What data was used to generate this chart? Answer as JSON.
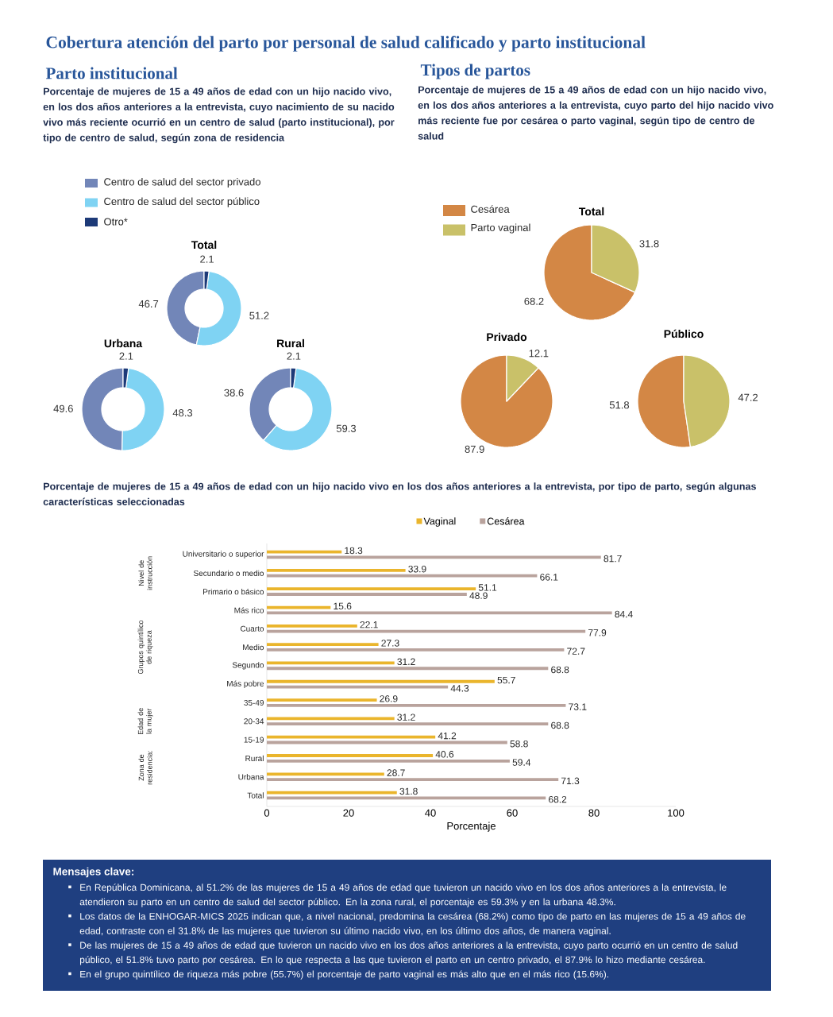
{
  "chart_data": [
    {
      "type": "other",
      "title": "Cobertura atención del parto por personal de salud calificado y parto institucional"
    },
    {
      "type": "other",
      "title": "Parto institucional",
      "subtitle": "Porcentaje de mujeres de 15 a 49 años de edad con un hijo nacido vivo, en los dos años anteriores a la entrevista, cuyo nacimiento de su nacido vivo más reciente ocurrió en un centro de salud (parto institucional), por tipo de centro de salud, según zona de residencia"
    },
    {
      "type": "other",
      "title": "Tipos de partos",
      "subtitle": "Porcentaje de mujeres de 15 a 49 años de edad con un hijo nacido vivo, en los dos años anteriores a la entrevista, cuyo parto del hijo nacido vivo más reciente fue por cesárea o parto vaginal, según tipo de centro de salud"
    },
    {
      "type": "donut",
      "title": "Total",
      "categories": [
        "Centro de salud del sector privado",
        "Centro de salud del sector público",
        "Otro*"
      ],
      "values": [
        46.7,
        51.2,
        2.1
      ],
      "colors": [
        "#7286b8",
        "#7fd3f3",
        "#1d3a78"
      ],
      "data_labels": true,
      "legend": "top left"
    },
    {
      "type": "donut",
      "title": "Urbana",
      "categories": [
        null,
        null,
        null
      ],
      "values": [
        49.6,
        48.3,
        2.1
      ],
      "colors": [
        "#7286b8",
        "#7fd3f3",
        "#1d3a78"
      ],
      "data_labels": true
    },
    {
      "type": "donut",
      "title": "Rural",
      "categories": [
        null,
        null,
        null
      ],
      "values": [
        38.6,
        59.3,
        2.1
      ],
      "colors": [
        "#7286b8",
        "#7fd3f3",
        "#1d3a78"
      ],
      "data_labels": true
    },
    {
      "type": "pie",
      "title": "Total",
      "categories": [
        "Cesárea",
        "Parto vaginal"
      ],
      "values": [
        68.2,
        31.8
      ],
      "colors": [
        "#d38745",
        "#c9c169"
      ],
      "data_labels": true,
      "legend": "left"
    },
    {
      "type": "pie",
      "title": "Privado",
      "categories": [
        null,
        null
      ],
      "values": [
        87.9,
        12.1
      ],
      "colors": [
        "#d38745",
        "#c9c169"
      ],
      "data_labels": true
    },
    {
      "type": "pie",
      "title": "Público",
      "categories": [
        null,
        null
      ],
      "values": [
        51.8,
        47.2
      ],
      "colors": [
        "#d38745",
        "#c9c169"
      ],
      "data_labels": true
    },
    {
      "type": "bar",
      "orientation": "horizontal",
      "title": "Porcentaje de mujeres de 15 a 49 años de edad con un hijo nacido vivo en los dos años anteriores a la entrevista,  por tipo de parto, según algunas características seleccionadas",
      "xlabel": "Porcentaje",
      "categories": [
        "Universitario o superior",
        "Secundario o medio",
        "Primario o básico",
        "Más rico",
        "Cuarto",
        "Medio",
        "Segundo",
        "Más pobre",
        "35-49",
        "20-34",
        "15-19",
        "Rural",
        "Urbana",
        "Total"
      ],
      "series": [
        {
          "name": "Vaginal",
          "color": "#eab52c",
          "values": [
            18.3,
            33.9,
            51.1,
            15.6,
            22.1,
            27.3,
            31.2,
            55.7,
            26.9,
            31.2,
            41.2,
            40.6,
            28.7,
            31.8
          ]
        },
        {
          "name": "Cesárea",
          "color": "#b9a39d",
          "values": [
            81.7,
            66.1,
            48.9,
            84.4,
            77.9,
            72.7,
            68.8,
            44.3,
            73.1,
            68.8,
            58.8,
            59.4,
            71.3,
            68.2
          ]
        }
      ],
      "xlim": [
        0,
        100
      ],
      "xticks": [
        0,
        20,
        40,
        60,
        80,
        100
      ],
      "data_labels": true,
      "legend": "top",
      "annotations": [
        "Nivel de instrucción",
        "Grupos quintílico de riqueza",
        "Edad de la mujer",
        "Zona de residencia:"
      ]
    },
    {
      "type": "other",
      "title": "Mensajes clave:",
      "annotations": [
        "En República Dominicana, al 51.2% de las mujeres de 15 a 49 años de edad que tuvieron un nacido vivo en los dos años anteriores a la entrevista, le atendieron su parto en un centro de salud del sector público. En la zona rural, el porcentaje es 59.3% y en la urbana 48.3%.",
        "Los datos de la ENHOGAR-MICS 2025 indican que, a nivel nacional, predomina la cesárea (68.2%) como tipo de parto en las mujeres de 15 a 49 años de edad, contraste con el 31.8%  de las mujeres que tuvieron su último nacido vivo, en los último dos años, de manera vaginal.",
        "De las mujeres de 15 a 49 años de edad que tuvieron un nacido vivo en los dos años anteriores a la entrevista, cuyo parto ocurrió en un centro de salud público, el 51.8% tuvo parto por cesárea. En lo que respecta a las que tuvieron el parto en un centro privado, el 87.9% lo hizo mediante cesárea.",
        "En el grupo quintílico de riqueza más pobre (55.7%) el porcentaje de parto vaginal es más alto que en  el más rico (15.6%)."
      ]
    }
  ]
}
